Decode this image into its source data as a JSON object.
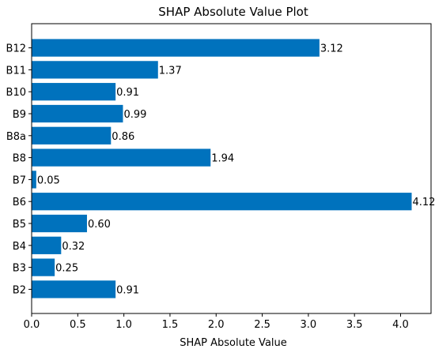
{
  "chart_data": {
    "type": "bar",
    "orientation": "horizontal",
    "title": "SHAP Absolute Value Plot",
    "xlabel": "SHAP Absolute Value",
    "ylabel": "",
    "categories": [
      "B2",
      "B3",
      "B4",
      "B5",
      "B6",
      "B7",
      "B8",
      "B8a",
      "B9",
      "B10",
      "B11",
      "B12"
    ],
    "values": [
      0.91,
      0.25,
      0.32,
      0.6,
      4.12,
      0.05,
      1.94,
      0.86,
      0.99,
      0.91,
      1.37,
      3.12
    ],
    "value_labels": [
      "0.91",
      "0.25",
      "0.32",
      "0.60",
      "4.12",
      "0.05",
      "1.94",
      "0.86",
      "0.99",
      "0.91",
      "1.37",
      "3.12"
    ],
    "xlim": [
      0,
      4.33
    ],
    "xticks": [
      0.0,
      0.5,
      1.0,
      1.5,
      2.0,
      2.5,
      3.0,
      3.5,
      4.0
    ],
    "xtick_labels": [
      "0.0",
      "0.5",
      "1.0",
      "1.5",
      "2.0",
      "2.5",
      "3.0",
      "3.5",
      "4.0"
    ],
    "bar_color": "#0072BD",
    "grid": false,
    "legend": "none"
  }
}
